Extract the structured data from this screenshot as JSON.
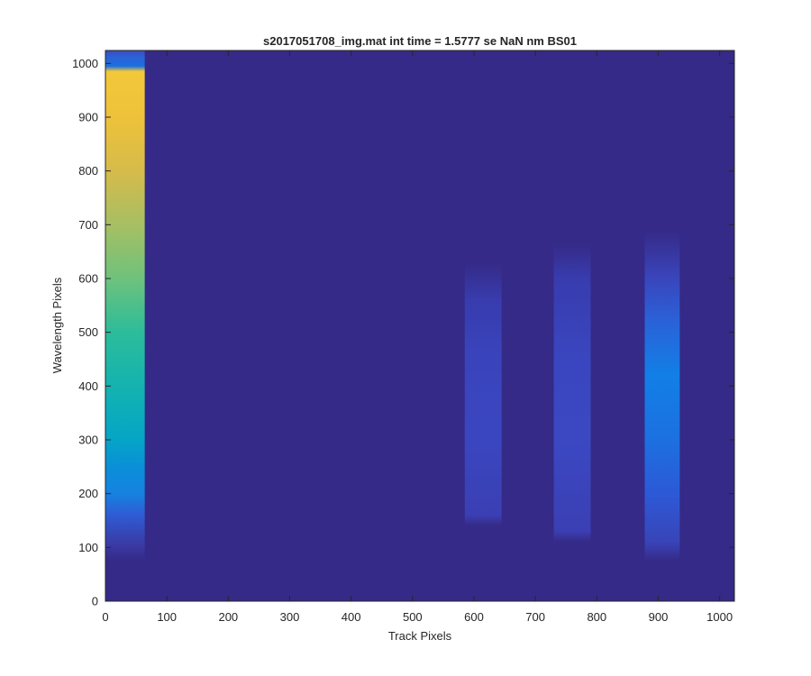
{
  "chart_data": {
    "type": "heatmap",
    "title": "s2017051708_img.mat int time = 1.5777 se  NaN nm BS01",
    "xlabel": "Track Pixels",
    "ylabel": "Wavelength Pixels",
    "xlim": [
      0,
      1024
    ],
    "ylim": [
      0,
      1024
    ],
    "xticks": [
      0,
      100,
      200,
      300,
      400,
      500,
      600,
      700,
      800,
      900,
      1000
    ],
    "yticks": [
      0,
      100,
      200,
      300,
      400,
      500,
      600,
      700,
      800,
      900,
      1000
    ],
    "grid": false,
    "colormap": "parula",
    "colors": {
      "background": "#352a87",
      "axis": "#262626"
    },
    "bands": [
      {
        "x_range": [
          0,
          64
        ],
        "profile": [
          {
            "y": 75,
            "color": "#352a87"
          },
          {
            "y": 100,
            "color": "#3a37a0"
          },
          {
            "y": 160,
            "color": "#2f5bd4"
          },
          {
            "y": 200,
            "color": "#1682e0"
          },
          {
            "y": 250,
            "color": "#0a8fd8"
          },
          {
            "y": 300,
            "color": "#05a5c6"
          },
          {
            "y": 400,
            "color": "#14b3b0"
          },
          {
            "y": 500,
            "color": "#2cbc9a"
          },
          {
            "y": 600,
            "color": "#6ec27c"
          },
          {
            "y": 700,
            "color": "#a7bf63"
          },
          {
            "y": 800,
            "color": "#d6bb4a"
          },
          {
            "y": 900,
            "color": "#eec23a"
          },
          {
            "y": 985,
            "color": "#f2c83a"
          },
          {
            "y": 995,
            "color": "#1a6fe0"
          },
          {
            "y": 1010,
            "color": "#2a63d8"
          },
          {
            "y": 1024,
            "color": "#3a4fc0"
          }
        ]
      },
      {
        "x_range": [
          585,
          645
        ],
        "profile": [
          {
            "y": 140,
            "color": "#352a87"
          },
          {
            "y": 160,
            "color": "#3b3fb3"
          },
          {
            "y": 300,
            "color": "#3a46c0"
          },
          {
            "y": 450,
            "color": "#3944bc"
          },
          {
            "y": 560,
            "color": "#383cae"
          },
          {
            "y": 630,
            "color": "#352a87"
          }
        ]
      },
      {
        "x_range": [
          730,
          790
        ],
        "profile": [
          {
            "y": 110,
            "color": "#352a87"
          },
          {
            "y": 130,
            "color": "#3b3fb3"
          },
          {
            "y": 300,
            "color": "#3b48c2"
          },
          {
            "y": 450,
            "color": "#3a46bf"
          },
          {
            "y": 600,
            "color": "#383cae"
          },
          {
            "y": 665,
            "color": "#352a87"
          }
        ]
      },
      {
        "x_range": [
          878,
          935
        ],
        "profile": [
          {
            "y": 75,
            "color": "#352a87"
          },
          {
            "y": 110,
            "color": "#3944b8"
          },
          {
            "y": 200,
            "color": "#2d59d6"
          },
          {
            "y": 300,
            "color": "#1c70e0"
          },
          {
            "y": 420,
            "color": "#127fe6"
          },
          {
            "y": 520,
            "color": "#2a62d8"
          },
          {
            "y": 600,
            "color": "#3a45bc"
          },
          {
            "y": 690,
            "color": "#352a87"
          }
        ]
      }
    ]
  }
}
